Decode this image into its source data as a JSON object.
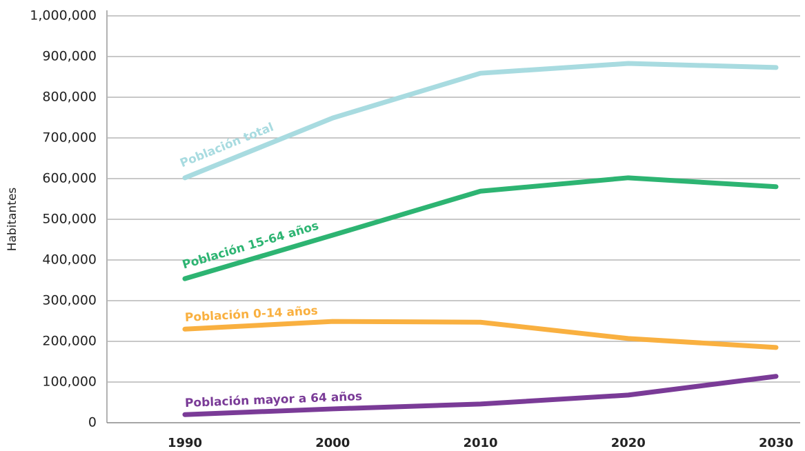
{
  "chart_data": {
    "type": "line",
    "y_label": "Habitantes",
    "categories": [
      "1990",
      "2000",
      "2010",
      "2020",
      "2030"
    ],
    "series": [
      {
        "name": "Población total",
        "color": "#a8dbe0",
        "values": [
          602000,
          749000,
          859000,
          883000,
          873000
        ]
      },
      {
        "name": "Población 15-64 años",
        "color": "#2db472",
        "values": [
          354000,
          461000,
          569000,
          602000,
          580000
        ]
      },
      {
        "name": "Población 0-14 años",
        "color": "#f9b040",
        "values": [
          230000,
          249000,
          247000,
          207000,
          185000
        ]
      },
      {
        "name": "Población mayor a 64 años",
        "color": "#7a3b97",
        "values": [
          20000,
          34000,
          46000,
          68000,
          114000
        ]
      }
    ],
    "ylim": [
      0,
      1000000
    ],
    "yticks": [
      0,
      {
        "value": 100000,
        "label": "100,000"
      },
      {
        "value": 200000,
        "label": "200,000"
      },
      {
        "value": 300000,
        "label": "300,000"
      },
      {
        "value": 400000,
        "label": "400,000"
      },
      {
        "value": 500000,
        "label": "500,000"
      },
      {
        "value": 600000,
        "label": "600,000"
      },
      {
        "value": 700000,
        "label": "700,000"
      },
      {
        "value": 800000,
        "label": "800,000"
      },
      {
        "value": 900000,
        "label": "900,000"
      },
      {
        "value": 1000000,
        "label": "1,000,000"
      }
    ],
    "grid": true
  }
}
